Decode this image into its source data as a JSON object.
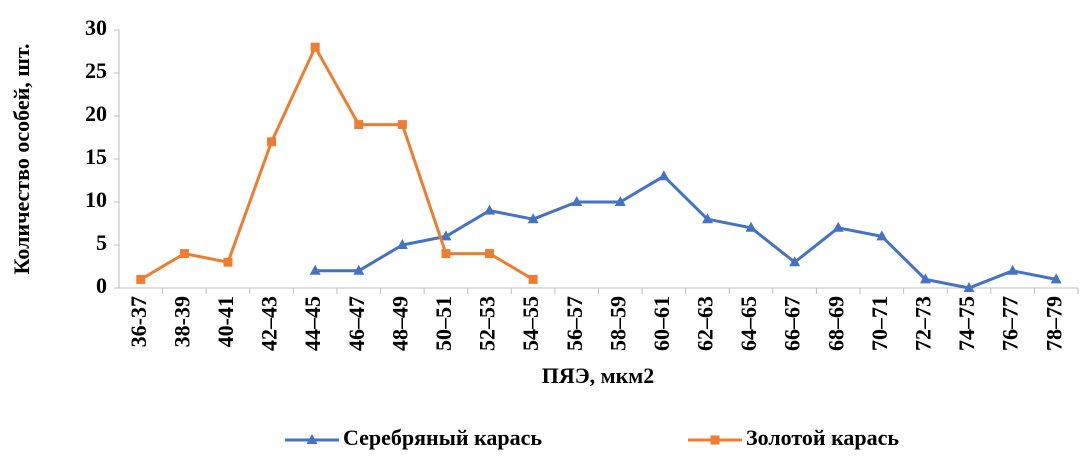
{
  "chart_data": {
    "type": "line",
    "x_label": "ПЯЭ, мкм2",
    "y_label": "Количество особей, шт.",
    "categories": [
      "36-37",
      "38-39",
      "40-41",
      "42–43",
      "44–45",
      "46–47",
      "48–49",
      "50–51",
      "52–53",
      "54–55",
      "56–57",
      "58–59",
      "60–61",
      "62–63",
      "64–65",
      "66–67",
      "68–69",
      "70–71",
      "72–73",
      "74–75",
      "76–77",
      "78–79"
    ],
    "series": [
      {
        "name": "Серебряный карась",
        "color": "#4472c4",
        "marker": "triangle",
        "values": [
          null,
          null,
          null,
          null,
          2,
          2,
          5,
          6,
          9,
          8,
          10,
          10,
          13,
          8,
          7,
          3,
          7,
          6,
          1,
          0,
          2,
          1
        ]
      },
      {
        "name": "Золотой карась",
        "color": "#ed7d31",
        "marker": "square",
        "values": [
          1,
          4,
          3,
          17,
          28,
          19,
          19,
          4,
          4,
          1,
          null,
          null,
          null,
          null,
          null,
          null,
          null,
          null,
          null,
          null,
          null,
          null
        ]
      }
    ],
    "ylim": [
      0,
      30
    ],
    "yticks": [
      0,
      5,
      10,
      15,
      20,
      25,
      30
    ],
    "grid": false,
    "legend": "bottom"
  }
}
